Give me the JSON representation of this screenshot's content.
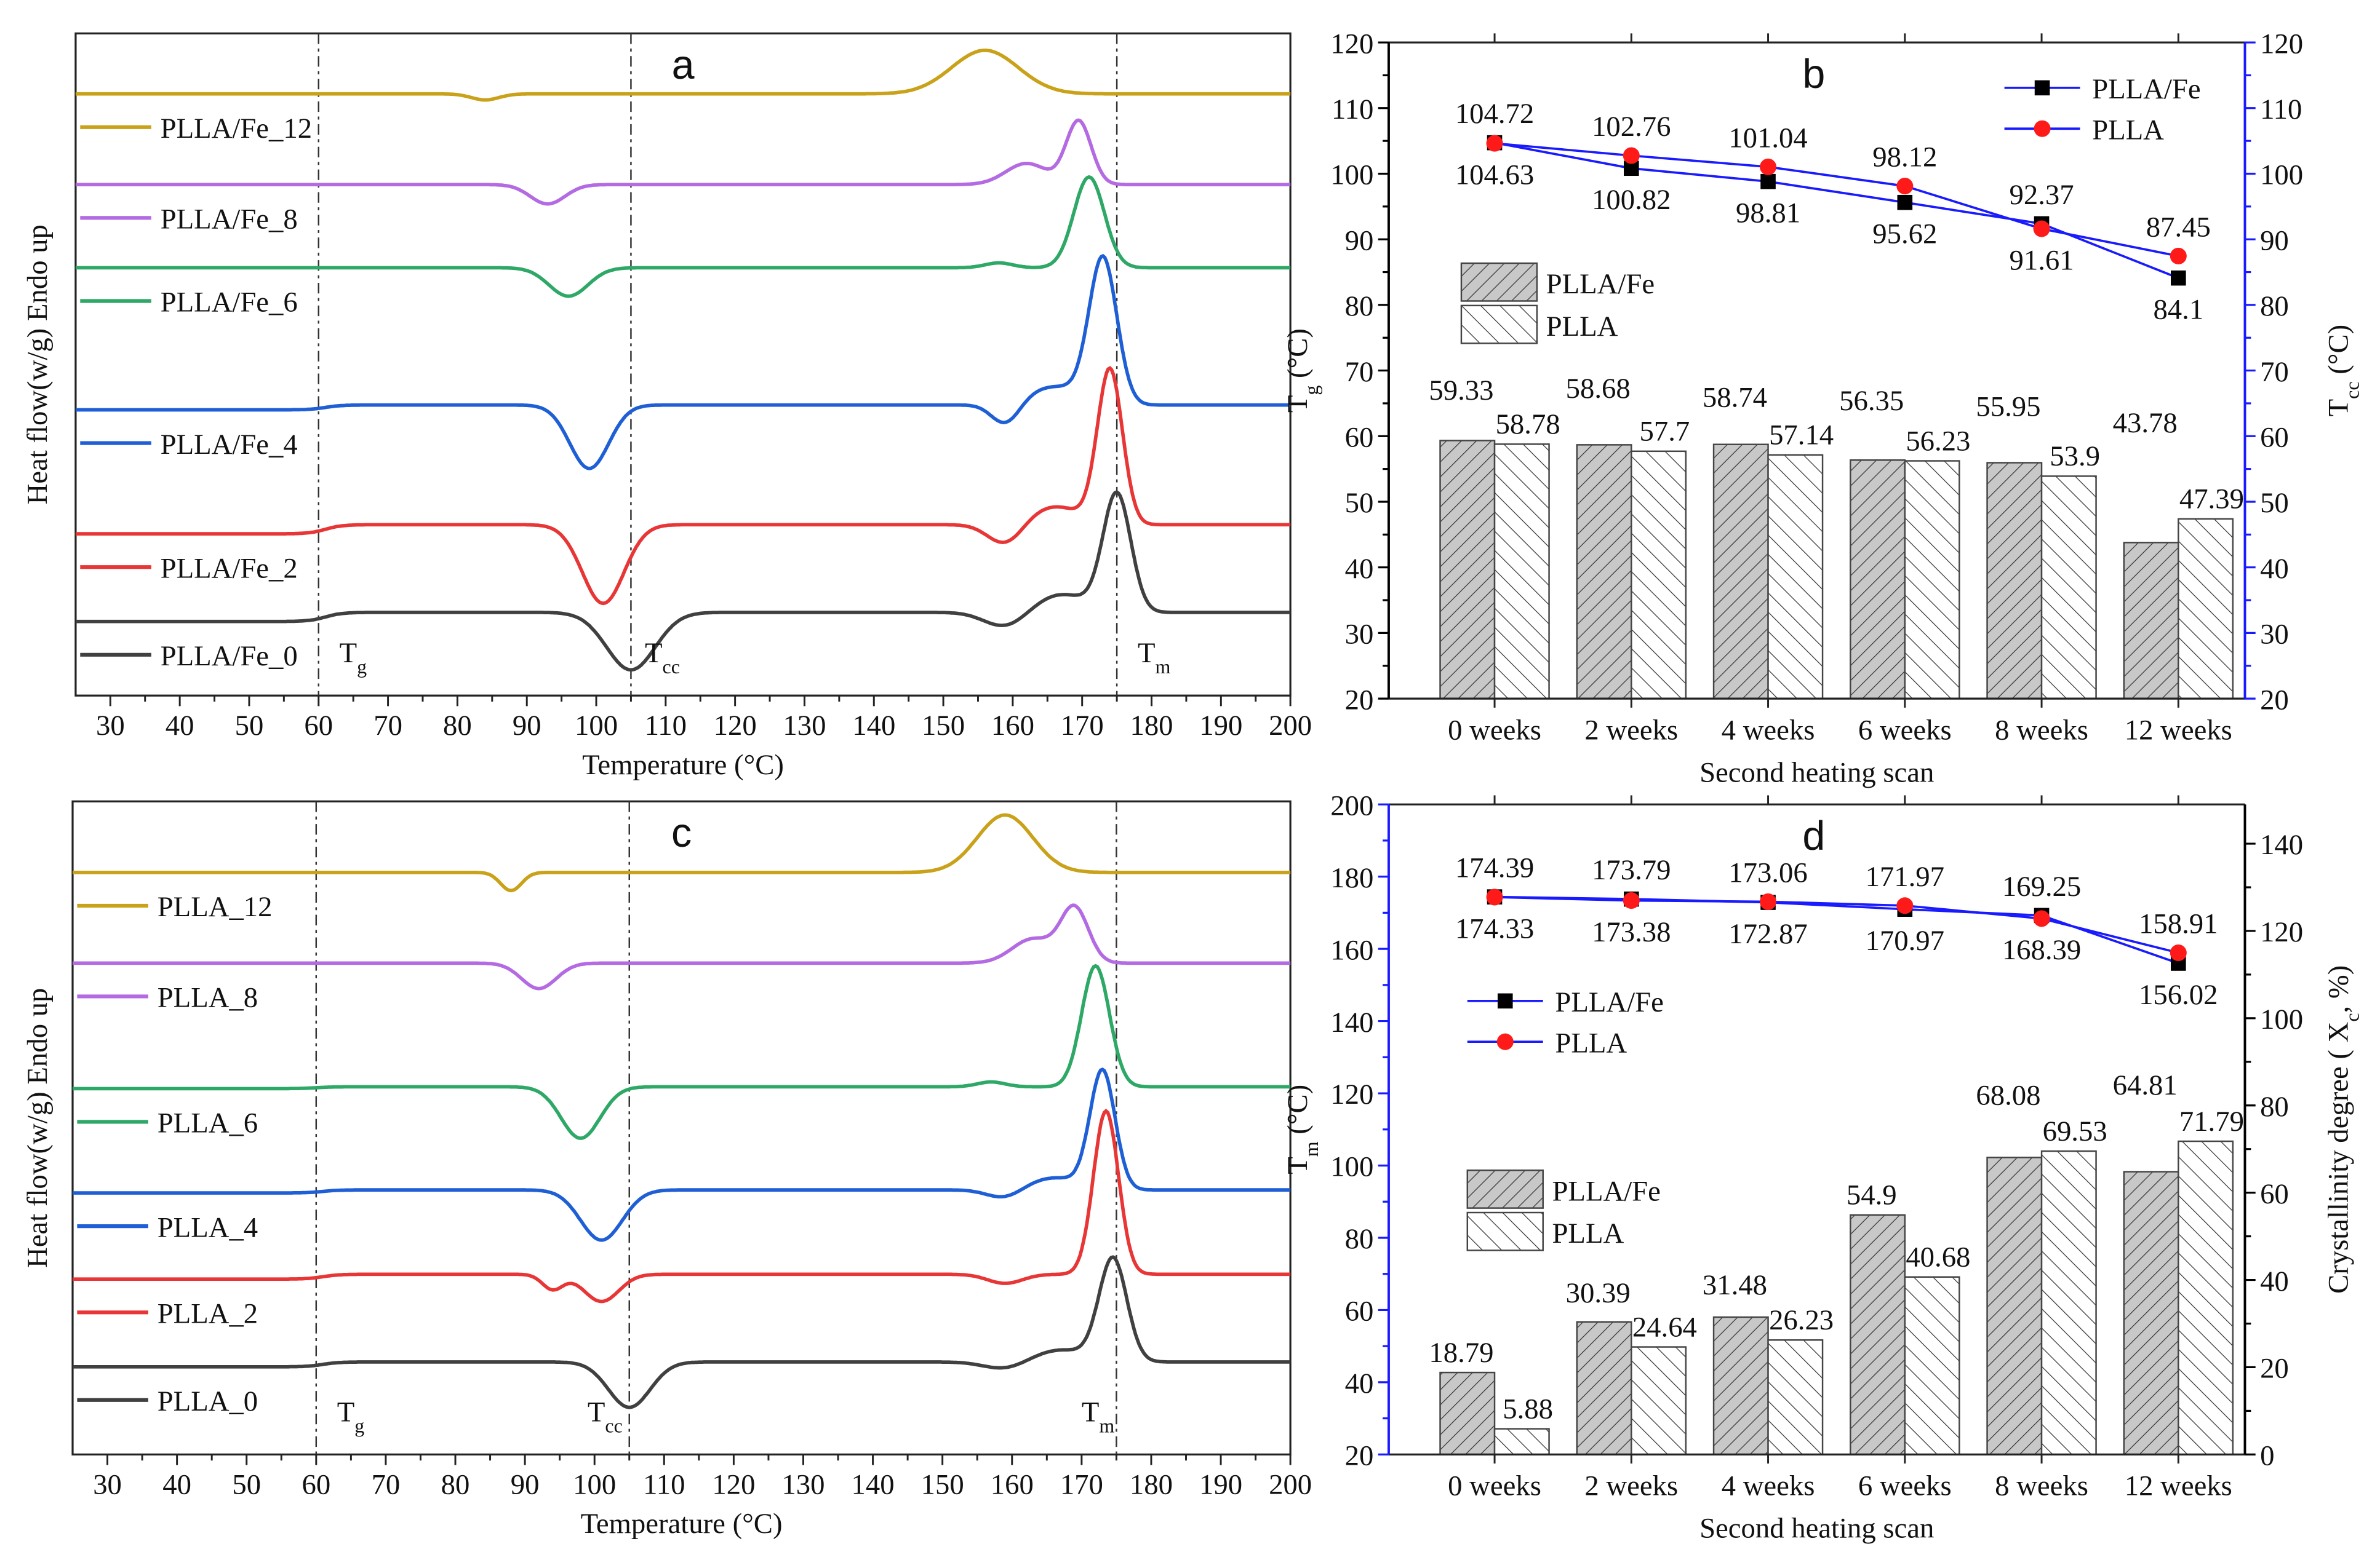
{
  "chart_data": [
    {
      "panel": "a",
      "type": "line",
      "title": "a",
      "xlabel": "Temperature (°C)",
      "ylabel": "Heat flow(w/g) Endo up",
      "xlim": [
        25,
        200
      ],
      "xticks": [
        30,
        40,
        50,
        60,
        70,
        80,
        90,
        100,
        110,
        120,
        130,
        140,
        150,
        160,
        170,
        180,
        190,
        200
      ],
      "vlines": [
        60,
        105,
        175
      ],
      "annotations": [
        {
          "main": "T",
          "sub": "g",
          "at_T": 63
        },
        {
          "main": "T",
          "sub": "cc",
          "at_T": 107
        },
        {
          "main": "T",
          "sub": "m",
          "at_T": 178
        }
      ],
      "series": [
        {
          "name": "PLLA/Fe_12",
          "color": "#c9a21a",
          "offset": 99.5,
          "features": [
            {
              "type": "peak",
              "T": 84,
              "h": -1,
              "w": 2
            },
            {
              "type": "peak",
              "T": 156,
              "h": 7.2,
              "w": 4.8
            }
          ]
        },
        {
          "name": "PLLA/Fe_8",
          "color": "#b36ae2",
          "offset": 84.5,
          "features": [
            {
              "type": "peak",
              "T": 93,
              "h": -3.2,
              "w": 2.5
            },
            {
              "type": "peak",
              "T": 162,
              "h": 3.5,
              "w": 3
            },
            {
              "type": "peak",
              "T": 169.5,
              "h": 10.5,
              "w": 1.8
            }
          ]
        },
        {
          "name": "PLLA/Fe_6",
          "color": "#2ea866",
          "offset": 70.75,
          "features": [
            {
              "type": "peak",
              "T": 96,
              "h": -4.7,
              "w": 2.8
            },
            {
              "type": "peak",
              "T": 158,
              "h": 0.8,
              "w": 2
            },
            {
              "type": "peak",
              "T": 171,
              "h": 15,
              "w": 2.2
            }
          ]
        },
        {
          "name": "PLLA/Fe_4",
          "color": "#1f5fd6",
          "offset": 47.25,
          "features": [
            {
              "type": "step",
              "T": 61,
              "h": 0.8
            },
            {
              "type": "peak",
              "T": 99,
              "h": -10.5,
              "w": 2.8
            },
            {
              "type": "peak",
              "T": 159,
              "h": -3.5,
              "w": 2
            },
            {
              "type": "peak",
              "T": 166,
              "h": 3,
              "w": 4
            },
            {
              "type": "peak",
              "T": 173,
              "h": 24,
              "w": 2
            }
          ]
        },
        {
          "name": "PLLA/Fe_2",
          "color": "#e83535",
          "offset": 26.75,
          "features": [
            {
              "type": "step",
              "T": 61,
              "h": 1.5
            },
            {
              "type": "peak",
              "T": 101,
              "h": -13,
              "w": 3
            },
            {
              "type": "peak",
              "T": 159,
              "h": -3.5,
              "w": 2.5
            },
            {
              "type": "peak",
              "T": 166,
              "h": 3,
              "w": 4
            },
            {
              "type": "peak",
              "T": 174,
              "h": 25.5,
              "w": 1.8
            }
          ]
        },
        {
          "name": "PLLA/Fe_0",
          "color": "#404040",
          "offset": 12.25,
          "features": [
            {
              "type": "step",
              "T": 61,
              "h": 1.5
            },
            {
              "type": "peak",
              "T": 105,
              "h": -9.5,
              "w": 3.5
            },
            {
              "type": "peak",
              "T": 159,
              "h": -2.5,
              "w": 3
            },
            {
              "type": "peak",
              "T": 167,
              "h": 3,
              "w": 4
            },
            {
              "type": "peak",
              "T": 175,
              "h": 19.5,
              "w": 2
            }
          ]
        }
      ]
    },
    {
      "panel": "b",
      "type": "bar",
      "title": "b",
      "xlabel": "Second heating scan",
      "categories": [
        "0 weeks",
        "2 weeks",
        "4 weeks",
        "6 weeks",
        "8 weeks",
        "12 weeks"
      ],
      "left_axis": {
        "main": "T",
        "sub": "g",
        "rest": " (°C)",
        "lim": [
          20,
          120
        ],
        "ticks": [
          20,
          30,
          40,
          50,
          60,
          70,
          80,
          90,
          100,
          110,
          120
        ],
        "color": "#000000"
      },
      "right_axis": {
        "main": "T",
        "sub": "cc",
        "rest": " (°C)",
        "lim": [
          20,
          120
        ],
        "ticks": [
          20,
          30,
          40,
          50,
          60,
          70,
          80,
          90,
          100,
          110,
          120
        ],
        "color": "#1a1aff"
      },
      "bars_axis": "left",
      "lines_axis": "right",
      "bar_series": [
        {
          "name": "PLLA/Fe",
          "pattern": "hatch-forward-gray",
          "values": [
            59.33,
            58.68,
            58.74,
            56.35,
            55.95,
            43.78
          ]
        },
        {
          "name": "PLLA",
          "pattern": "hatch-back-white",
          "values": [
            58.78,
            57.7,
            57.14,
            56.23,
            53.9,
            47.39
          ]
        }
      ],
      "line_series": [
        {
          "name": "PLLA/Fe",
          "marker": "square",
          "marker_color": "#000000",
          "label_color": "#000000",
          "line_color": "#1a1aff",
          "values": [
            104.72,
            100.82,
            98.81,
            95.62,
            92.37,
            84.1
          ],
          "labels": [
            "104.72",
            "100.82",
            "98.81",
            "95.62",
            "92.37",
            "84.1"
          ],
          "label_side": [
            "above",
            "below",
            "below",
            "below",
            "above",
            "below"
          ]
        },
        {
          "name": "PLLA",
          "marker": "circle",
          "marker_color": "#ff1a1a",
          "label_color": "#ff1a1a",
          "line_color": "#1a1aff",
          "values": [
            104.63,
            102.76,
            101.04,
            98.12,
            91.61,
            87.45
          ],
          "labels": [
            "104.63",
            "102.76",
            "101.04",
            "98.12",
            "91.61",
            "87.45"
          ],
          "label_side": [
            "below",
            "above",
            "above",
            "above",
            "below",
            "above"
          ]
        }
      ],
      "legend_position": "top-right (lines), middle-left (bars)"
    },
    {
      "panel": "c",
      "type": "line",
      "title": "c",
      "xlabel": "Temperature (°C)",
      "ylabel": "Heat flow(w/g) Endo up",
      "xlim": [
        25,
        200
      ],
      "xticks": [
        30,
        40,
        50,
        60,
        70,
        80,
        90,
        100,
        110,
        120,
        130,
        140,
        150,
        160,
        170,
        180,
        190,
        200
      ],
      "vlines": [
        60,
        105,
        175
      ],
      "annotations": [
        {
          "main": "T",
          "sub": "g",
          "at_T": 63
        },
        {
          "main": "T",
          "sub": "cc",
          "at_T": 99
        },
        {
          "main": "T",
          "sub": "m",
          "at_T": 170
        }
      ],
      "series": [
        {
          "name": "PLLA_12",
          "color": "#c9a21a",
          "offset": 96.25,
          "features": [
            {
              "type": "peak",
              "T": 88,
              "h": -3,
              "w": 1.5
            },
            {
              "type": "peak",
              "T": 159,
              "h": 9.5,
              "w": 4
            }
          ]
        },
        {
          "name": "PLLA_8",
          "color": "#b36ae2",
          "offset": 81.25,
          "features": [
            {
              "type": "peak",
              "T": 92,
              "h": -4.2,
              "w": 2.5
            },
            {
              "type": "peak",
              "T": 163,
              "h": 4,
              "w": 3
            },
            {
              "type": "peak",
              "T": 169,
              "h": 9,
              "w": 2
            }
          ]
        },
        {
          "name": "PLLA_6",
          "color": "#2ea866",
          "offset": 60.5,
          "features": [
            {
              "type": "step",
              "T": 60,
              "h": 0.3
            },
            {
              "type": "peak",
              "T": 98,
              "h": -8.5,
              "w": 2.8
            },
            {
              "type": "peak",
              "T": 157,
              "h": 0.8,
              "w": 2
            },
            {
              "type": "peak",
              "T": 172,
              "h": 20,
              "w": 2
            }
          ]
        },
        {
          "name": "PLLA_4",
          "color": "#1f5fd6",
          "offset": 43.25,
          "features": [
            {
              "type": "step",
              "T": 61,
              "h": 0.5
            },
            {
              "type": "peak",
              "T": 101,
              "h": -8.3,
              "w": 3
            },
            {
              "type": "peak",
              "T": 159,
              "h": -1.5,
              "w": 2.5
            },
            {
              "type": "peak",
              "T": 166,
              "h": 2,
              "w": 4
            },
            {
              "type": "peak",
              "T": 173,
              "h": 19.5,
              "w": 1.8
            }
          ]
        },
        {
          "name": "PLLA_2",
          "color": "#e83535",
          "offset": 29,
          "features": [
            {
              "type": "step",
              "T": 61,
              "h": 0.8
            },
            {
              "type": "peak",
              "T": 94,
              "h": -2.5,
              "w": 1.5
            },
            {
              "type": "peak",
              "T": 101,
              "h": -4.5,
              "w": 2.5
            },
            {
              "type": "peak",
              "T": 159,
              "h": -1.5,
              "w": 2.5
            },
            {
              "type": "peak",
              "T": 173.5,
              "h": 27,
              "w": 1.8
            }
          ]
        },
        {
          "name": "PLLA_0",
          "color": "#404040",
          "offset": 14.5,
          "features": [
            {
              "type": "step",
              "T": 61,
              "h": 0.8
            },
            {
              "type": "peak",
              "T": 105,
              "h": -7.5,
              "w": 3
            },
            {
              "type": "peak",
              "T": 159,
              "h": -1.2,
              "w": 3
            },
            {
              "type": "peak",
              "T": 167,
              "h": 2,
              "w": 4
            },
            {
              "type": "peak",
              "T": 174.5,
              "h": 17,
              "w": 2
            }
          ]
        }
      ]
    },
    {
      "panel": "d",
      "type": "bar",
      "title": "d",
      "xlabel": "Second heating scan",
      "categories": [
        "0 weeks",
        "2 weeks",
        "4 weeks",
        "6 weeks",
        "8 weeks",
        "12 weeks"
      ],
      "left_axis": {
        "main": "T",
        "sub": "m",
        "rest": " (°C)",
        "lim": [
          20,
          200
        ],
        "ticks": [
          20,
          40,
          60,
          80,
          100,
          120,
          140,
          160,
          180,
          200
        ],
        "color": "#1a1aff"
      },
      "right_axis": {
        "main": "Crystallinity degree ( X",
        "sub": "c",
        "rest": ", %)",
        "lim": [
          0,
          149
        ],
        "ticks": [
          0,
          20,
          40,
          60,
          80,
          100,
          120,
          140
        ],
        "color": "#000000"
      },
      "bars_axis": "right",
      "lines_axis": "left",
      "bar_series": [
        {
          "name": "PLLA/Fe",
          "pattern": "hatch-forward-gray",
          "values": [
            18.79,
            30.39,
            31.48,
            54.9,
            68.08,
            64.81
          ]
        },
        {
          "name": "PLLA",
          "pattern": "hatch-back-white",
          "values": [
            5.88,
            24.64,
            26.23,
            40.68,
            69.53,
            71.79
          ]
        }
      ],
      "line_series": [
        {
          "name": "PLLA/Fe",
          "marker": "square",
          "marker_color": "#000000",
          "label_color": "#000000",
          "line_color": "#1a1aff",
          "values": [
            174.39,
            173.79,
            172.87,
            170.97,
            169.25,
            156.02
          ],
          "labels": [
            "174.39",
            "173.79",
            "172.87",
            "170.97",
            "169.25",
            "156.02"
          ],
          "label_side": [
            "above",
            "above",
            "below",
            "below",
            "above",
            "below"
          ]
        },
        {
          "name": "PLLA",
          "marker": "circle",
          "marker_color": "#ff1a1a",
          "label_color": "#ff1a1a",
          "line_color": "#1a1aff",
          "values": [
            174.33,
            173.38,
            173.06,
            171.97,
            168.39,
            158.91
          ],
          "labels": [
            "174.33",
            "173.38",
            "173.06",
            "171.97",
            "168.39",
            "158.91"
          ],
          "label_side": [
            "below",
            "below",
            "above",
            "above",
            "below",
            "above"
          ]
        }
      ],
      "legend_position": "middle-left"
    }
  ]
}
